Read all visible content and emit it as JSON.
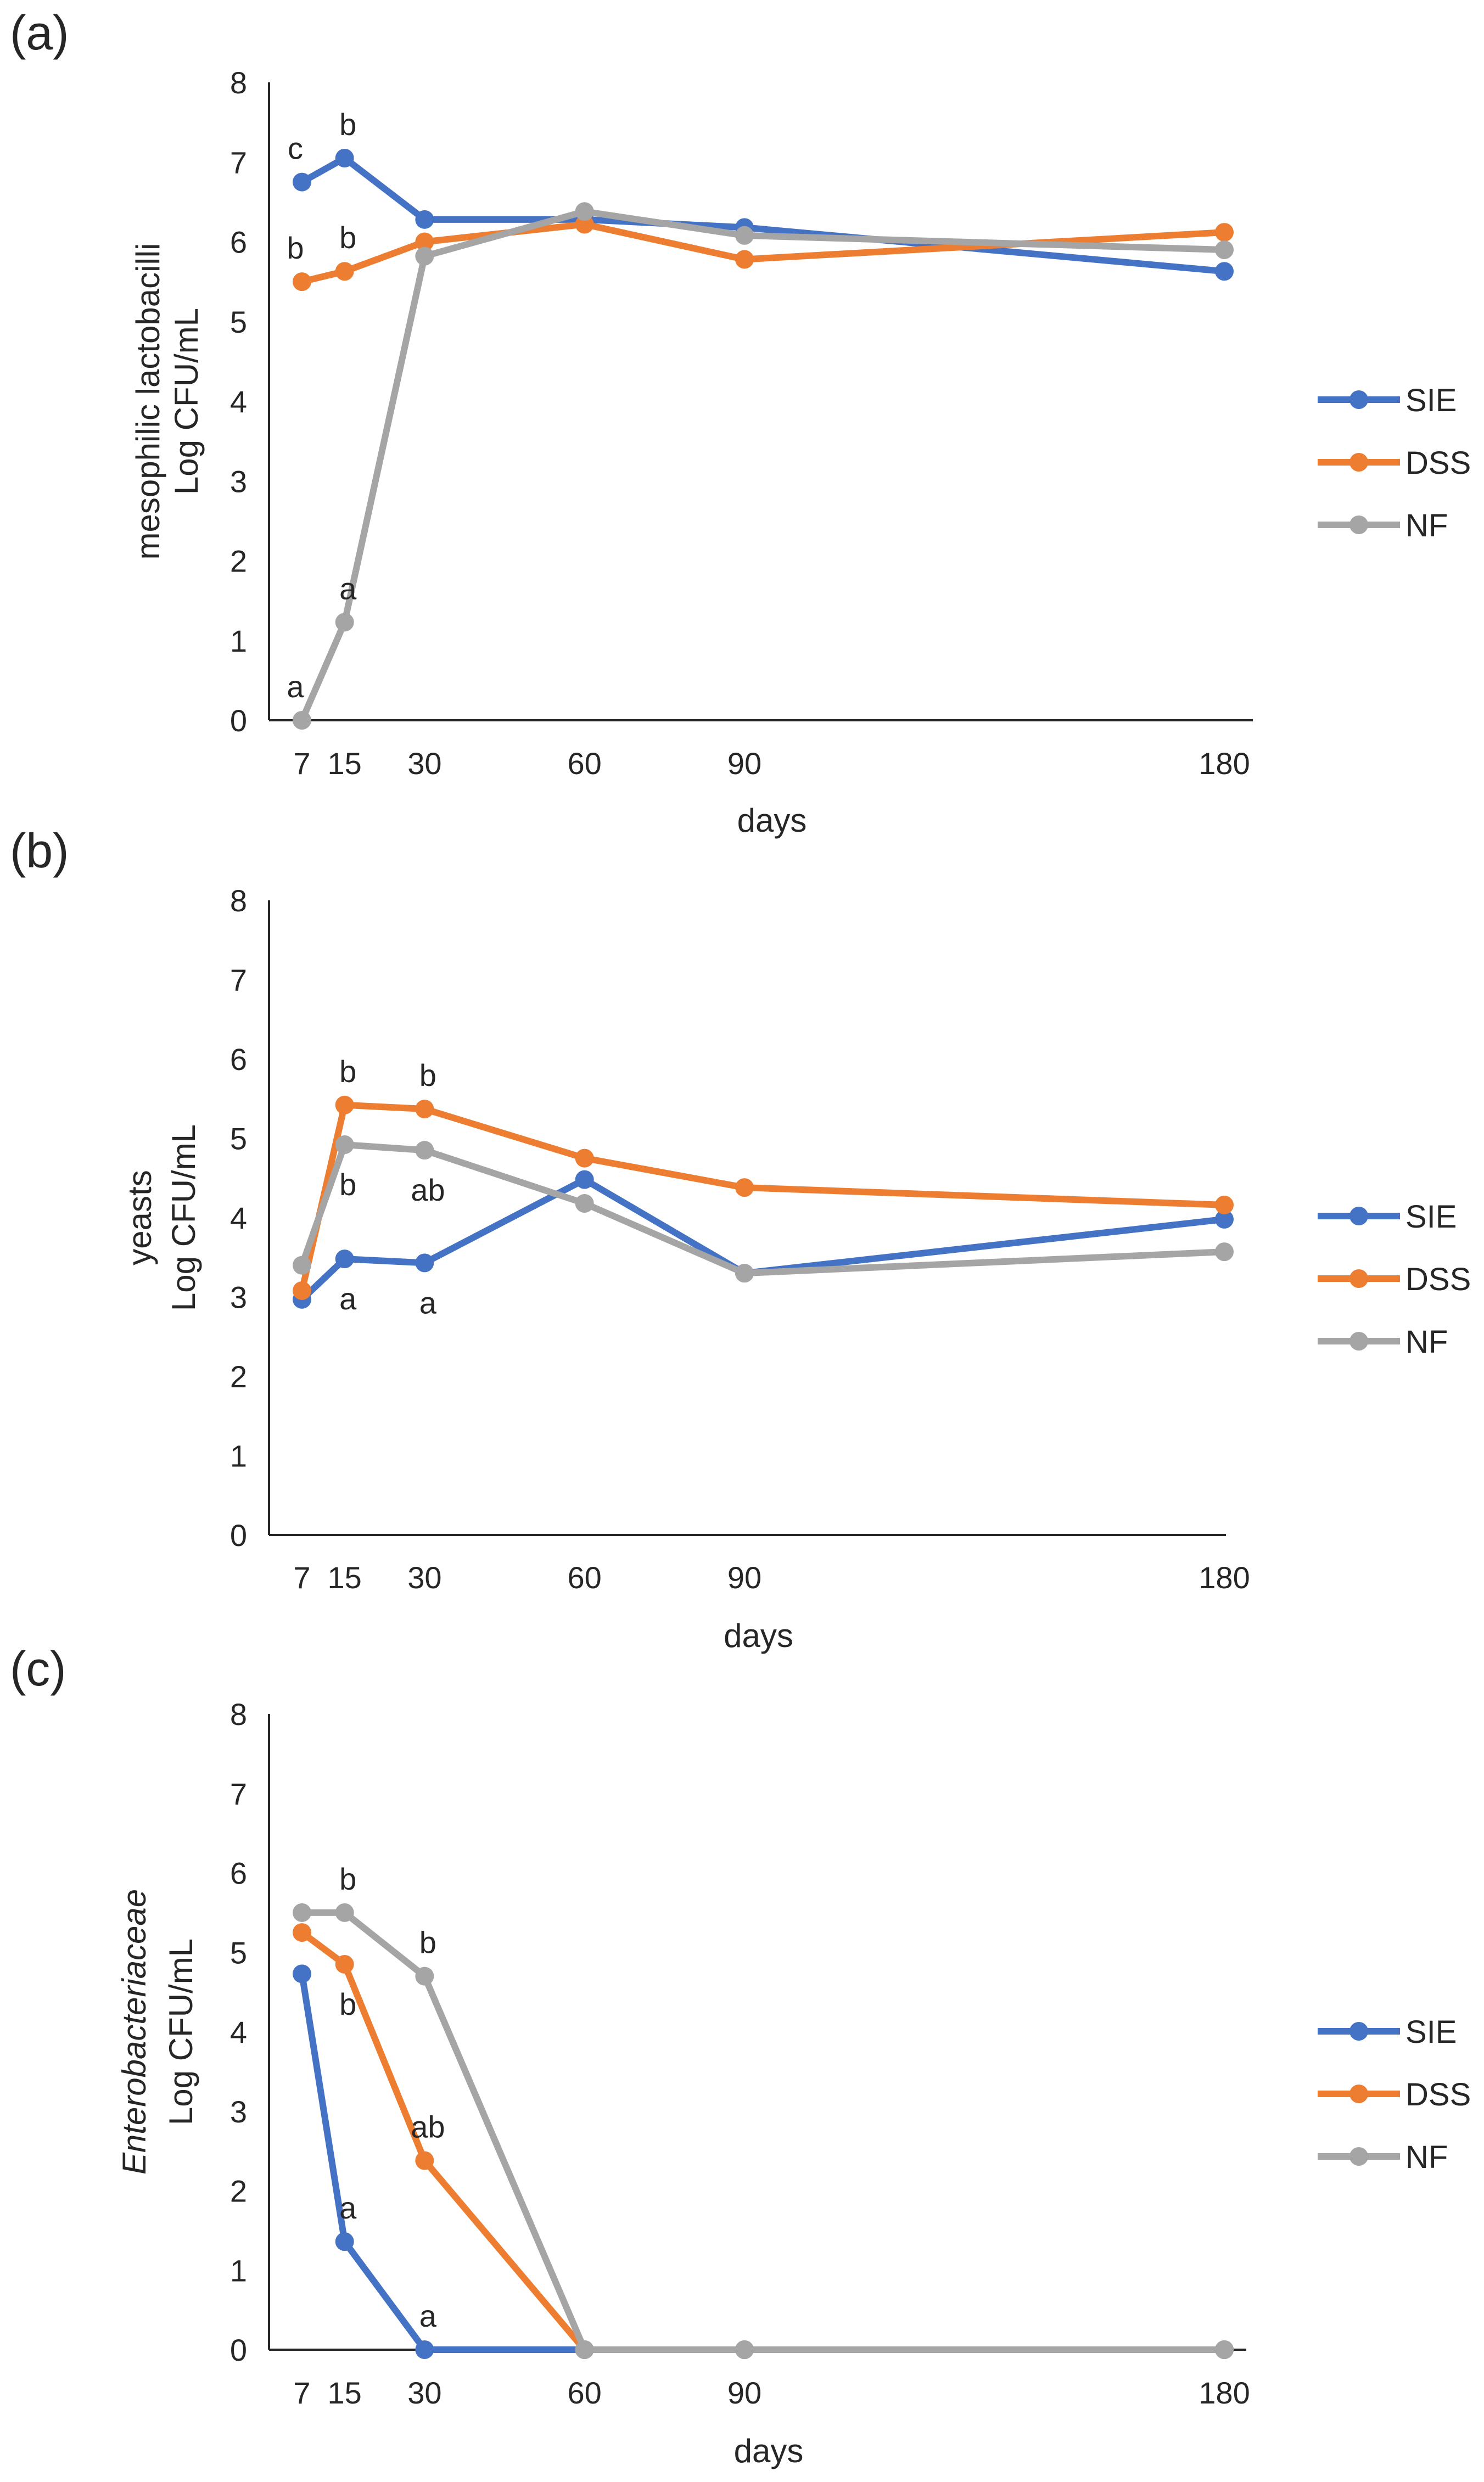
{
  "chart_data": [
    {
      "type": "line",
      "panel_label": "(a)",
      "ylabel_line1": "mesophilic lactobacilli",
      "ylabel_line1_italic": false,
      "ylabel_line2": "Log CFU/mL",
      "xlabel": "days",
      "x": [
        7,
        15,
        30,
        60,
        90,
        180
      ],
      "x_tick_labels": [
        "7",
        "15",
        "30",
        "60",
        "90",
        "180"
      ],
      "ylim": [
        0,
        8
      ],
      "y_ticks": [
        "0",
        "1",
        "2",
        "3",
        "4",
        "5",
        "6",
        "7",
        "8"
      ],
      "legend": [
        "SIE",
        "DSS",
        "NF"
      ],
      "series": [
        {
          "name": "SIE",
          "color": "#4472C4",
          "values": [
            6.75,
            7.05,
            6.28,
            6.28,
            6.18,
            5.63
          ]
        },
        {
          "name": "DSS",
          "color": "#ED7D31",
          "values": [
            5.5,
            5.63,
            6.0,
            6.22,
            5.78,
            6.12
          ]
        },
        {
          "name": "NF",
          "color": "#A5A5A5",
          "values": [
            0,
            1.23,
            5.82,
            6.38,
            6.08,
            5.9
          ]
        }
      ],
      "annotations": [
        {
          "text": "c",
          "x": 7,
          "y": 6.75,
          "pos": "above"
        },
        {
          "text": "b",
          "x": 15,
          "y": 7.05,
          "pos": "above"
        },
        {
          "text": "b",
          "x": 7,
          "y": 5.5,
          "pos": "above"
        },
        {
          "text": "b",
          "x": 15,
          "y": 5.63,
          "pos": "above"
        },
        {
          "text": "a",
          "x": 15,
          "y": 1.23,
          "pos": "above"
        },
        {
          "text": "a",
          "x": 7,
          "y": 0,
          "pos": "above"
        }
      ]
    },
    {
      "type": "line",
      "panel_label": "(b)",
      "ylabel_line1": "yeasts",
      "ylabel_line1_italic": false,
      "ylabel_line2": "Log CFU/mL",
      "xlabel": "days",
      "x": [
        7,
        15,
        30,
        60,
        90,
        180
      ],
      "x_tick_labels": [
        "7",
        "15",
        "30",
        "60",
        "90",
        "180"
      ],
      "ylim": [
        0,
        8
      ],
      "y_ticks": [
        "0",
        "1",
        "2",
        "3",
        "4",
        "5",
        "6",
        "7",
        "8"
      ],
      "legend": [
        "SIE",
        "DSS",
        "NF"
      ],
      "series": [
        {
          "name": "SIE",
          "color": "#4472C4",
          "values": [
            2.97,
            3.48,
            3.43,
            4.48,
            3.3,
            3.98
          ]
        },
        {
          "name": "DSS",
          "color": "#ED7D31",
          "values": [
            3.08,
            5.42,
            5.37,
            4.75,
            4.38,
            4.16
          ]
        },
        {
          "name": "NF",
          "color": "#A5A5A5",
          "values": [
            3.4,
            4.92,
            4.85,
            4.18,
            3.3,
            3.57
          ]
        }
      ],
      "annotations": [
        {
          "text": "b",
          "x": 15,
          "y": 5.42,
          "pos": "above"
        },
        {
          "text": "b",
          "x": 30,
          "y": 5.37,
          "pos": "above"
        },
        {
          "text": "b",
          "x": 15,
          "y": 4.92,
          "pos": "below"
        },
        {
          "text": "ab",
          "x": 30,
          "y": 4.85,
          "pos": "below"
        },
        {
          "text": "a",
          "x": 15,
          "y": 3.48,
          "pos": "below"
        },
        {
          "text": "a",
          "x": 30,
          "y": 3.43,
          "pos": "below"
        }
      ]
    },
    {
      "type": "line",
      "panel_label": "(c)",
      "ylabel_line1": "Enterobacteriaceae",
      "ylabel_line1_italic": true,
      "ylabel_line2": "Log CFU/mL",
      "xlabel": "days",
      "x": [
        7,
        15,
        30,
        60,
        90,
        180
      ],
      "x_tick_labels": [
        "7",
        "15",
        "30",
        "60",
        "90",
        "180"
      ],
      "ylim": [
        0,
        8
      ],
      "y_ticks": [
        "0",
        "1",
        "2",
        "3",
        "4",
        "5",
        "6",
        "7",
        "8"
      ],
      "legend": [
        "SIE",
        "DSS",
        "NF"
      ],
      "series": [
        {
          "name": "SIE",
          "color": "#4472C4",
          "values": [
            4.73,
            1.36,
            0,
            0,
            0,
            0
          ]
        },
        {
          "name": "DSS",
          "color": "#ED7D31",
          "values": [
            5.25,
            4.85,
            2.38,
            0,
            0,
            0
          ]
        },
        {
          "name": "NF",
          "color": "#A5A5A5",
          "values": [
            5.5,
            5.5,
            4.7,
            0,
            0,
            0
          ]
        }
      ],
      "annotations": [
        {
          "text": "b",
          "x": 15,
          "y": 5.5,
          "pos": "above"
        },
        {
          "text": "b",
          "x": 30,
          "y": 4.7,
          "pos": "above"
        },
        {
          "text": "b",
          "x": 15,
          "y": 4.85,
          "pos": "below"
        },
        {
          "text": "ab",
          "x": 30,
          "y": 2.38,
          "pos": "above"
        },
        {
          "text": "a",
          "x": 15,
          "y": 1.36,
          "pos": "above"
        },
        {
          "text": "a",
          "x": 30,
          "y": 0,
          "pos": "above"
        }
      ]
    }
  ]
}
